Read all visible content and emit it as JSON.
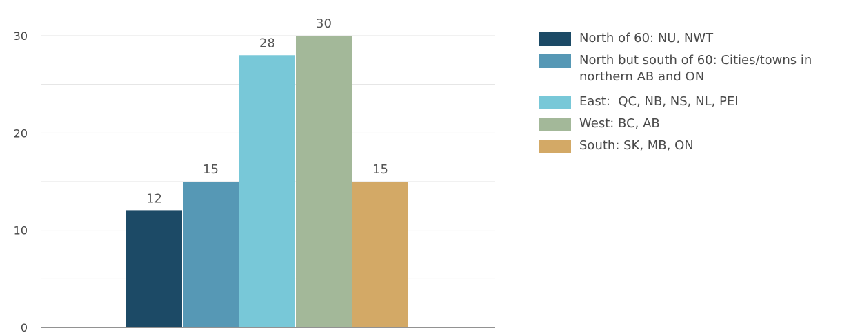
{
  "chart_data": {
    "type": "bar",
    "ylim": [
      0,
      30
    ],
    "yticks": [
      0,
      10,
      20,
      30
    ],
    "grid": true,
    "legend_placement": "right",
    "series": [
      {
        "name": "North of 60: NU, NWT",
        "value": 12,
        "color": "#1c4a66"
      },
      {
        "name": "North but south of 60: Cities/towns in northern AB and ON",
        "value": 15,
        "color": "#5698b5"
      },
      {
        "name": "East:  QC, NB, NS, NL, PEI",
        "value": 28,
        "color": "#78c8d8"
      },
      {
        "name": "West: BC, AB",
        "value": 30,
        "color": "#a3b899"
      },
      {
        "name": "South: SK, MB, ON",
        "value": 15,
        "color": "#d3a966"
      }
    ]
  }
}
